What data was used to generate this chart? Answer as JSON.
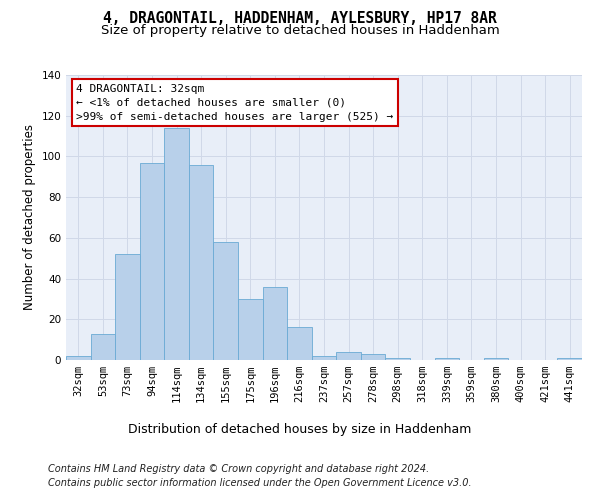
{
  "title1": "4, DRAGONTAIL, HADDENHAM, AYLESBURY, HP17 8AR",
  "title2": "Size of property relative to detached houses in Haddenham",
  "xlabel": "Distribution of detached houses by size in Haddenham",
  "ylabel": "Number of detached properties",
  "categories": [
    "32sqm",
    "53sqm",
    "73sqm",
    "94sqm",
    "114sqm",
    "134sqm",
    "155sqm",
    "175sqm",
    "196sqm",
    "216sqm",
    "237sqm",
    "257sqm",
    "278sqm",
    "298sqm",
    "318sqm",
    "339sqm",
    "359sqm",
    "380sqm",
    "400sqm",
    "421sqm",
    "441sqm"
  ],
  "bar_values": [
    2,
    13,
    52,
    97,
    114,
    96,
    58,
    30,
    36,
    16,
    2,
    4,
    3,
    1,
    0,
    1,
    0,
    1,
    0,
    0,
    1
  ],
  "bar_color": "#b8d0ea",
  "bar_edge_color": "#6aaad4",
  "annotation_text": "4 DRAGONTAIL: 32sqm\n← <1% of detached houses are smaller (0)\n>99% of semi-detached houses are larger (525) →",
  "annotation_box_color": "#ffffff",
  "annotation_box_edge": "#cc0000",
  "ylim": [
    0,
    140
  ],
  "yticks": [
    0,
    20,
    40,
    60,
    80,
    100,
    120,
    140
  ],
  "grid_color": "#d0d8e8",
  "bg_color": "#e8eef8",
  "footer1": "Contains HM Land Registry data © Crown copyright and database right 2024.",
  "footer2": "Contains public sector information licensed under the Open Government Licence v3.0.",
  "title1_fontsize": 10.5,
  "title2_fontsize": 9.5,
  "xlabel_fontsize": 9,
  "ylabel_fontsize": 8.5,
  "tick_fontsize": 7.5,
  "annotation_fontsize": 8,
  "footer_fontsize": 7
}
